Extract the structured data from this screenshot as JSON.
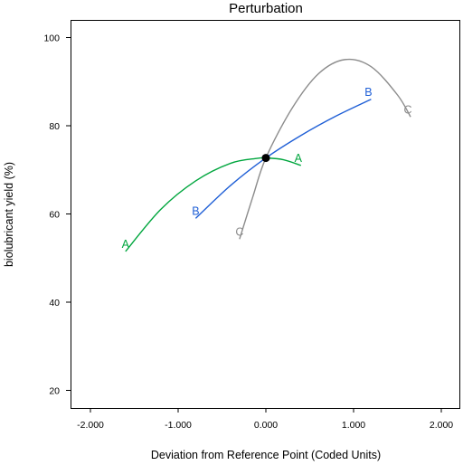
{
  "chart_data": {
    "type": "line",
    "title": "Perturbation",
    "xlabel": "Deviation from Reference Point (Coded Units)",
    "ylabel": "biolubricant yield (%)",
    "xlim": [
      -2.0,
      2.0
    ],
    "ylim": [
      16,
      104
    ],
    "x_ticks": [
      -2.0,
      -1.0,
      0.0,
      1.0,
      2.0
    ],
    "x_tick_labels": [
      "-2.000",
      "-1.000",
      "0.000",
      "1.000",
      "2.000"
    ],
    "y_ticks": [
      20,
      40,
      60,
      80,
      100
    ],
    "y_tick_labels": [
      "20",
      "40",
      "60",
      "80",
      "100"
    ],
    "reference_point": {
      "x": 0.0,
      "y": 72.7
    },
    "series": [
      {
        "name": "A",
        "color": "#00a63e",
        "x": [
          -1.6,
          -1.2,
          -0.8,
          -0.4,
          -0.1,
          0.0,
          0.2,
          0.4
        ],
        "y": [
          51.5,
          61.0,
          67.5,
          71.5,
          72.6,
          72.7,
          72.3,
          71.0
        ]
      },
      {
        "name": "B",
        "color": "#1f5fd6",
        "x": [
          -0.8,
          -0.4,
          0.0,
          0.4,
          0.8,
          1.2
        ],
        "y": [
          59.0,
          66.5,
          72.7,
          77.8,
          82.2,
          86.0
        ]
      },
      {
        "name": "C",
        "color": "#8c8c8c",
        "x": [
          -0.3,
          -0.15,
          0.0,
          0.3,
          0.6,
          0.9,
          1.2,
          1.5,
          1.65
        ],
        "y": [
          54.3,
          63.8,
          72.7,
          84.0,
          91.8,
          95.0,
          93.4,
          87.0,
          82.0
        ]
      }
    ],
    "grid": false,
    "legend": "none"
  }
}
